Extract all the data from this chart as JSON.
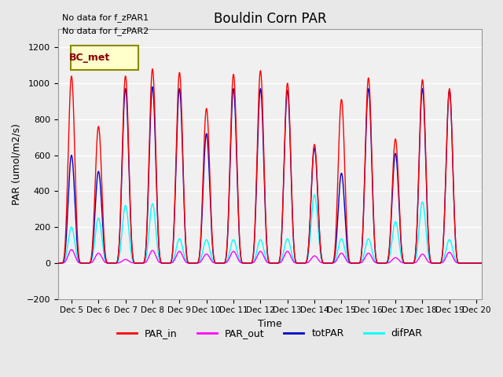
{
  "title": "Bouldin Corn PAR",
  "ylabel": "PAR (umol/m2/s)",
  "xlabel": "Time",
  "xlim_days": [
    4.5,
    20.2
  ],
  "ylim": [
    -200,
    1300
  ],
  "yticks": [
    -200,
    0,
    200,
    400,
    600,
    800,
    1000,
    1200
  ],
  "xtick_labels": [
    "Dec 5",
    "Dec 6",
    "Dec 7",
    "Dec 8",
    "Dec 9",
    "Dec 10",
    "Dec 11",
    "Dec 12",
    "Dec 13",
    "Dec 14",
    "Dec 15",
    "Dec 16",
    "Dec 17",
    "Dec 18",
    "Dec 19",
    "Dec 20"
  ],
  "xtick_positions": [
    5,
    6,
    7,
    8,
    9,
    10,
    11,
    12,
    13,
    14,
    15,
    16,
    17,
    18,
    19,
    20
  ],
  "note_lines": [
    "No data for f_zPAR1",
    "No data for f_zPAR2"
  ],
  "legend_label": "BC_met",
  "legend_box_color": "#FFFFCC",
  "legend_box_edge": "#8B8B00",
  "colors": {
    "PAR_in": "#FF0000",
    "PAR_out": "#FF00FF",
    "totPAR": "#0000CC",
    "difPAR": "#00FFFF"
  },
  "background_color": "#E8E8E8",
  "plot_bg": "#F0F0F0",
  "grid_color": "#FFFFFF",
  "peaks": [
    {
      "day": 5,
      "PAR_in": 1040,
      "PAR_out": 75,
      "totPAR": 600,
      "difPAR": 200
    },
    {
      "day": 6,
      "PAR_in": 760,
      "PAR_out": 55,
      "totPAR": 510,
      "difPAR": 250
    },
    {
      "day": 7,
      "PAR_in": 1040,
      "PAR_out": 20,
      "totPAR": 970,
      "difPAR": 320
    },
    {
      "day": 8,
      "PAR_in": 1080,
      "PAR_out": 70,
      "totPAR": 980,
      "difPAR": 330
    },
    {
      "day": 9,
      "PAR_in": 1060,
      "PAR_out": 65,
      "totPAR": 970,
      "difPAR": 135
    },
    {
      "day": 10,
      "PAR_in": 860,
      "PAR_out": 50,
      "totPAR": 720,
      "difPAR": 130
    },
    {
      "day": 11,
      "PAR_in": 1050,
      "PAR_out": 65,
      "totPAR": 970,
      "difPAR": 130
    },
    {
      "day": 12,
      "PAR_in": 1070,
      "PAR_out": 65,
      "totPAR": 970,
      "difPAR": 130
    },
    {
      "day": 13,
      "PAR_in": 1000,
      "PAR_out": 65,
      "totPAR": 960,
      "difPAR": 135
    },
    {
      "day": 14,
      "PAR_in": 660,
      "PAR_out": 40,
      "totPAR": 640,
      "difPAR": 380
    },
    {
      "day": 15,
      "PAR_in": 910,
      "PAR_out": 55,
      "totPAR": 500,
      "difPAR": 135
    },
    {
      "day": 16,
      "PAR_in": 1030,
      "PAR_out": 55,
      "totPAR": 970,
      "difPAR": 135
    },
    {
      "day": 17,
      "PAR_in": 690,
      "PAR_out": 30,
      "totPAR": 610,
      "difPAR": 230
    },
    {
      "day": 18,
      "PAR_in": 1020,
      "PAR_out": 50,
      "totPAR": 970,
      "difPAR": 340
    },
    {
      "day": 19,
      "PAR_in": 970,
      "PAR_out": 60,
      "totPAR": 960,
      "difPAR": 130
    }
  ]
}
